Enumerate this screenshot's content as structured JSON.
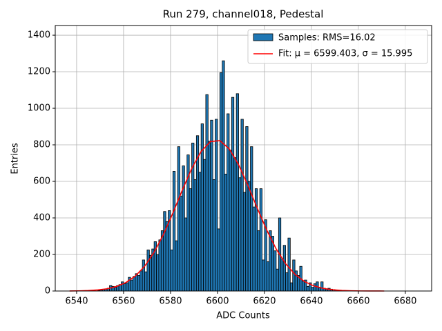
{
  "chart_data": {
    "type": "histogram",
    "title": "Run 279, channel018, Pedestal",
    "xlabel": "ADC Counts",
    "ylabel": "Entries",
    "name": "Samples: RMS=16.02",
    "color": "#1f77b4",
    "bins": [
      6549,
      6550,
      6551,
      6552,
      6553,
      6554,
      6555,
      6556,
      6557,
      6558,
      6559,
      6560,
      6561,
      6562,
      6563,
      6564,
      6565,
      6566,
      6567,
      6568,
      6569,
      6570,
      6571,
      6572,
      6573,
      6574,
      6575,
      6576,
      6577,
      6578,
      6579,
      6580,
      6581,
      6582,
      6583,
      6584,
      6585,
      6586,
      6587,
      6588,
      6589,
      6590,
      6591,
      6592,
      6593,
      6594,
      6595,
      6596,
      6597,
      6598,
      6599,
      6600,
      6601,
      6602,
      6603,
      6604,
      6605,
      6606,
      6607,
      6608,
      6609,
      6610,
      6611,
      6612,
      6613,
      6614,
      6615,
      6616,
      6617,
      6618,
      6619,
      6620,
      6621,
      6622,
      6623,
      6624,
      6625,
      6626,
      6627,
      6628,
      6629,
      6630,
      6631,
      6632,
      6633,
      6634,
      6635,
      6636,
      6637,
      6638,
      6639,
      6640,
      6641,
      6642,
      6643,
      6644,
      6645,
      6646,
      6647,
      6648,
      6649,
      6650,
      6651
    ],
    "values": [
      3,
      5,
      8,
      10,
      15,
      30,
      25,
      20,
      30,
      35,
      50,
      40,
      45,
      75,
      60,
      80,
      95,
      85,
      110,
      170,
      105,
      225,
      195,
      230,
      270,
      200,
      280,
      330,
      435,
      380,
      440,
      225,
      655,
      275,
      790,
      520,
      685,
      400,
      745,
      560,
      810,
      610,
      850,
      650,
      915,
      720,
      1075,
      820,
      935,
      610,
      940,
      340,
      1195,
      1260,
      640,
      970,
      770,
      1060,
      730,
      1080,
      620,
      940,
      540,
      900,
      600,
      790,
      460,
      560,
      330,
      560,
      170,
      390,
      160,
      330,
      300,
      220,
      120,
      400,
      175,
      250,
      100,
      290,
      45,
      170,
      110,
      85,
      135,
      55,
      60,
      25,
      45,
      20,
      40,
      50,
      20,
      50,
      15,
      10,
      15,
      10,
      8,
      5
    ],
    "fit": {
      "name": "Fit: μ = 6599.403, σ = 15.995",
      "color": "#ff0000",
      "x": [
        6537,
        6541,
        6545,
        6549,
        6553,
        6557,
        6561,
        6565,
        6569,
        6573,
        6577,
        6581,
        6585,
        6589,
        6593,
        6597,
        6601,
        6605,
        6609,
        6613,
        6617,
        6621,
        6625,
        6629,
        6633,
        6637,
        6641,
        6645,
        6649,
        6653,
        6657,
        6661,
        6665,
        6669,
        6671
      ],
      "values": [
        0.4,
        1.0,
        2.6,
        5.8,
        12.3,
        24.7,
        46.4,
        82.0,
        135.9,
        211.9,
        310.0,
        426.6,
        551.6,
        669.7,
        763.4,
        817.9,
        822.9,
        777.8,
        690.6,
        576.4,
        451.5,
        332.4,
        229.9,
        149.3,
        91.0,
        52.2,
        28.1,
        14.2,
        6.8,
        3.0,
        1.3,
        0.5,
        0.2,
        0.1,
        0.05
      ]
    },
    "xlim": [
      6530.9,
      6691.2
    ],
    "ylim": [
      0,
      1453
    ],
    "xticks": [
      6540,
      6560,
      6580,
      6600,
      6620,
      6640,
      6660,
      6680
    ],
    "yticks": [
      0,
      200,
      400,
      600,
      800,
      1000,
      1200,
      1400
    ],
    "grid": true,
    "legend": "upper right"
  }
}
